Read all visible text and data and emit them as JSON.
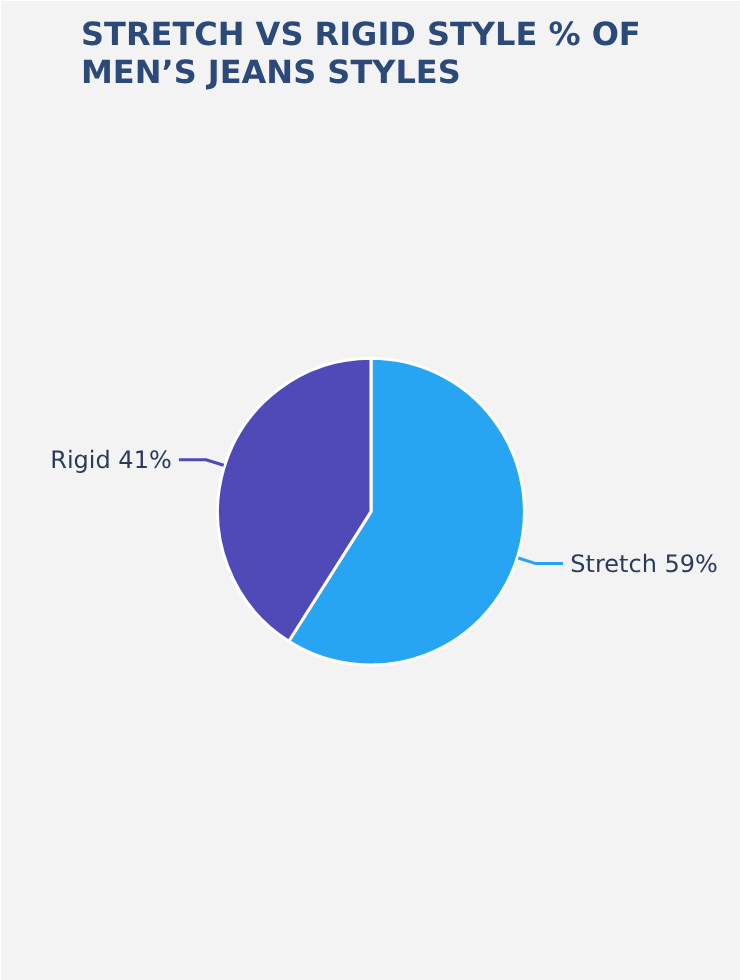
{
  "chart_data": {
    "type": "pie",
    "title": "STRETCH VS RIGID STYLE % OF MEN’S JEANS STYLES",
    "categories": [
      "Stretch",
      "Rigid"
    ],
    "values": [
      59,
      41
    ],
    "value_labels": [
      "59%",
      "41%"
    ],
    "colors": [
      "#27a4f2",
      "#4f4ab8"
    ]
  }
}
